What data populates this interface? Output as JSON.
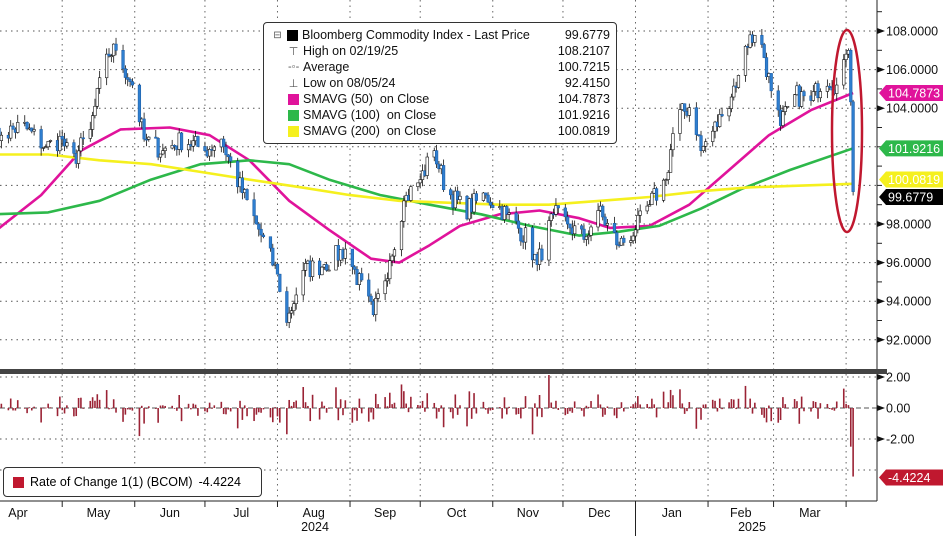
{
  "legend": {
    "title": "Bloomberg Commodity Index - Last Price",
    "title_value": "99.6779",
    "items": [
      {
        "icon": "high-marker-icon",
        "label": "High on 02/19/25",
        "value": "108.2107"
      },
      {
        "icon": "average-marker-icon",
        "label": "Average",
        "value": "100.7215"
      },
      {
        "icon": "low-marker-icon",
        "label": "Low on 08/05/24",
        "value": "92.4150"
      },
      {
        "color": "#e0139b",
        "label": "SMAVG (50)  on Close",
        "value": "104.7873"
      },
      {
        "color": "#2db84a",
        "label": "SMAVG (100)  on Close",
        "value": "101.9216"
      },
      {
        "color": "#f5f01e",
        "label": "SMAVG (200)  on Close",
        "value": "100.0819"
      }
    ]
  },
  "roc_legend": {
    "label": "Rate of Change 1(1) (BCOM)",
    "value": "-4.4224",
    "color": "#c0182f"
  },
  "right_tags": {
    "sma50": {
      "value": "104.7873",
      "color": "#e0139b"
    },
    "sma100": {
      "value": "101.9216",
      "color": "#2db84a"
    },
    "sma200": {
      "value": "100.0819",
      "color": "#f5f01e"
    },
    "last": {
      "value": "99.6779",
      "color": "#000000"
    },
    "roc": {
      "value": "-4.4224",
      "color": "#c0182f"
    }
  },
  "chart_data": {
    "type": "line",
    "style": "candlestick with moving averages and rate-of-change subpanel",
    "x_axis": {
      "months": [
        "Apr",
        "May",
        "Jun",
        "Jul",
        "Aug",
        "Sep",
        "Oct",
        "Nov",
        "Dec",
        "Jan",
        "Feb",
        "Mar"
      ],
      "years": [
        "2024",
        "2025"
      ],
      "range": [
        "2024-04-01",
        "2025-04-08"
      ]
    },
    "y_axis": {
      "ticks": [
        "108.0000",
        "106.0000",
        "104.0000",
        "98.0000",
        "96.0000",
        "94.0000",
        "92.0000"
      ],
      "range": [
        91.2,
        109.6
      ]
    },
    "lower_axis": {
      "ticks": [
        "2.00",
        "0.00",
        "-2.00"
      ],
      "range": [
        -5.8,
        2.4
      ]
    },
    "grid": true,
    "colors": {
      "up_candle": "#ffffff",
      "down_candle": "#2f7fd0",
      "roc_bar": "#9b2335",
      "annotation_ellipse": "#c0182f"
    },
    "series": [
      {
        "name": "Bloomberg Commodity Index - Last Price",
        "kind": "close",
        "points": [
          [
            "2024-04-01",
            102.4
          ],
          [
            "2024-04-05",
            102.6
          ],
          [
            "2024-04-14",
            103.1
          ],
          [
            "2024-04-24",
            102.0
          ],
          [
            "2024-05-01",
            102.4
          ],
          [
            "2024-05-05",
            101.1
          ],
          [
            "2024-05-13",
            102.9
          ],
          [
            "2024-05-20",
            106.8
          ],
          [
            "2024-05-24",
            107.0
          ],
          [
            "2024-05-31",
            105.2
          ],
          [
            "2024-06-05",
            102.4
          ],
          [
            "2024-06-13",
            101.8
          ],
          [
            "2024-06-22",
            102.4
          ],
          [
            "2024-07-01",
            101.8
          ],
          [
            "2024-07-08",
            102.4
          ],
          [
            "2024-07-14",
            100.5
          ],
          [
            "2024-07-23",
            98.0
          ],
          [
            "2024-08-01",
            95.4
          ],
          [
            "2024-08-05",
            92.9
          ],
          [
            "2024-08-12",
            95.6
          ],
          [
            "2024-08-21",
            95.9
          ],
          [
            "2024-08-30",
            96.7
          ],
          [
            "2024-09-08",
            94.1
          ],
          [
            "2024-09-11",
            93.3
          ],
          [
            "2024-09-18",
            96.1
          ],
          [
            "2024-09-24",
            99.2
          ],
          [
            "2024-10-01",
            100.3
          ],
          [
            "2024-10-07",
            101.8
          ],
          [
            "2024-10-12",
            99.8
          ],
          [
            "2024-10-20",
            98.7
          ],
          [
            "2024-10-29",
            99.5
          ],
          [
            "2024-11-07",
            98.5
          ],
          [
            "2024-11-16",
            97.2
          ],
          [
            "2024-11-20",
            95.9
          ],
          [
            "2024-11-27",
            98.5
          ],
          [
            "2024-12-03",
            98.0
          ],
          [
            "2024-12-10",
            97.2
          ],
          [
            "2024-12-16",
            98.7
          ],
          [
            "2024-12-25",
            96.9
          ],
          [
            "2025-01-01",
            97.7
          ],
          [
            "2025-01-07",
            99.0
          ],
          [
            "2025-01-14",
            100.3
          ],
          [
            "2025-01-18",
            103.4
          ],
          [
            "2025-01-25",
            104.2
          ],
          [
            "2025-01-29",
            101.8
          ],
          [
            "2025-02-07",
            103.6
          ],
          [
            "2025-02-14",
            105.7
          ],
          [
            "2025-02-19",
            107.8
          ],
          [
            "2025-02-24",
            107.3
          ],
          [
            "2025-02-28",
            104.9
          ],
          [
            "2025-03-04",
            103.1
          ],
          [
            "2025-03-10",
            104.7
          ],
          [
            "2025-03-17",
            104.4
          ],
          [
            "2025-03-23",
            105.7
          ],
          [
            "2025-03-28",
            105.2
          ],
          [
            "2025-04-01",
            106.8
          ],
          [
            "2025-04-02",
            107.0
          ],
          [
            "2025-04-03",
            104.33
          ],
          [
            "2025-04-04",
            99.6779
          ]
        ]
      },
      {
        "name": "SMAVG (50)  on Close",
        "color": "#e0139b",
        "points": [
          [
            "2024-04-01",
            97.5
          ],
          [
            "2024-04-22",
            99.5
          ],
          [
            "2024-05-09",
            101.8
          ],
          [
            "2024-05-26",
            102.9
          ],
          [
            "2024-06-16",
            103.0
          ],
          [
            "2024-07-03",
            102.6
          ],
          [
            "2024-07-20",
            101.3
          ],
          [
            "2024-08-06",
            99.2
          ],
          [
            "2024-08-23",
            97.7
          ],
          [
            "2024-09-10",
            96.2
          ],
          [
            "2024-09-22",
            96.0
          ],
          [
            "2024-10-05",
            96.9
          ],
          [
            "2024-10-18",
            97.9
          ],
          [
            "2024-11-04",
            98.5
          ],
          [
            "2024-11-21",
            98.7
          ],
          [
            "2024-12-08",
            98.3
          ],
          [
            "2024-12-21",
            97.8
          ],
          [
            "2025-01-07",
            97.9
          ],
          [
            "2025-01-24",
            99.0
          ],
          [
            "2025-02-10",
            100.8
          ],
          [
            "2025-02-27",
            102.6
          ],
          [
            "2025-03-17",
            103.9
          ],
          [
            "2025-04-04",
            104.7873
          ]
        ]
      },
      {
        "name": "SMAVG (100)  on Close",
        "color": "#2db84a",
        "points": [
          [
            "2024-04-01",
            98.5
          ],
          [
            "2024-04-25",
            98.6
          ],
          [
            "2024-05-17",
            99.2
          ],
          [
            "2024-06-08",
            100.3
          ],
          [
            "2024-06-29",
            101.1
          ],
          [
            "2024-07-20",
            101.3
          ],
          [
            "2024-08-06",
            101.1
          ],
          [
            "2024-08-23",
            100.3
          ],
          [
            "2024-09-14",
            99.5
          ],
          [
            "2024-10-05",
            99.0
          ],
          [
            "2024-10-27",
            98.5
          ],
          [
            "2024-11-17",
            97.9
          ],
          [
            "2024-12-08",
            97.4
          ],
          [
            "2024-12-25",
            97.6
          ],
          [
            "2025-01-11",
            97.9
          ],
          [
            "2025-01-29",
            98.8
          ],
          [
            "2025-02-15",
            99.8
          ],
          [
            "2025-03-08",
            100.8
          ],
          [
            "2025-04-04",
            101.9216
          ]
        ]
      },
      {
        "name": "SMAVG (200)  on Close",
        "color": "#f5f01e",
        "points": [
          [
            "2024-04-01",
            101.6
          ],
          [
            "2024-04-25",
            101.6
          ],
          [
            "2024-05-17",
            101.3
          ],
          [
            "2024-06-08",
            101.1
          ],
          [
            "2024-06-29",
            100.7
          ],
          [
            "2024-07-20",
            100.3
          ],
          [
            "2024-08-11",
            99.9
          ],
          [
            "2024-09-01",
            99.5
          ],
          [
            "2024-09-22",
            99.2
          ],
          [
            "2024-10-14",
            99.1
          ],
          [
            "2024-11-04",
            99.0
          ],
          [
            "2024-11-25",
            99.0
          ],
          [
            "2024-12-17",
            99.2
          ],
          [
            "2025-01-07",
            99.4
          ],
          [
            "2025-01-29",
            99.7
          ],
          [
            "2025-02-19",
            99.9
          ],
          [
            "2025-04-04",
            100.0819
          ]
        ]
      },
      {
        "name": "Rate of Change 1(1) (BCOM)",
        "last_value": -4.4224
      }
    ],
    "annotations": [
      {
        "type": "ellipse",
        "around": "last week of data (early April 2025 drop)"
      }
    ]
  }
}
